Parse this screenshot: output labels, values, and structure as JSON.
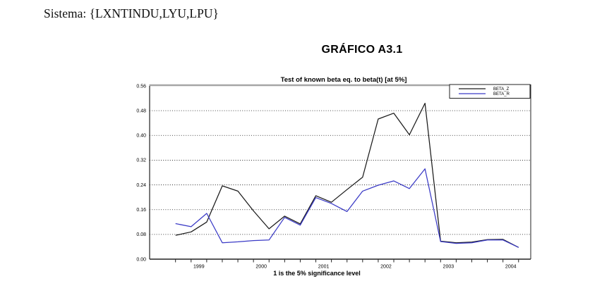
{
  "page": {
    "system_line": "Sistema: {LXNTINDU,LYU,LPU}",
    "figure_title": "GRÁFICO A3.1"
  },
  "chart_data": {
    "type": "line",
    "title": "Test of known beta eq. to beta(t) [at 5%]",
    "xlabel": "1 is the 5% significance level",
    "ylabel": "",
    "x_quarters": [
      "1998Q3",
      "1998Q4",
      "1999Q1",
      "1999Q2",
      "1999Q3",
      "1999Q4",
      "2000Q1",
      "2000Q2",
      "2000Q3",
      "2000Q4",
      "2001Q1",
      "2001Q2",
      "2001Q3",
      "2001Q4",
      "2002Q1",
      "2002Q2",
      "2002Q3",
      "2002Q4",
      "2003Q1",
      "2003Q2",
      "2003Q3",
      "2003Q4",
      "2004Q1"
    ],
    "x_numeric": [
      1998.625,
      1998.875,
      1999.125,
      1999.375,
      1999.625,
      1999.875,
      2000.125,
      2000.375,
      2000.625,
      2000.875,
      2001.125,
      2001.375,
      2001.625,
      2001.875,
      2002.125,
      2002.375,
      2002.625,
      2002.875,
      2003.125,
      2003.375,
      2003.625,
      2003.875,
      2004.125
    ],
    "series": [
      {
        "name": "BETA_Z",
        "color": "#1a1a1a",
        "values": [
          0.077,
          0.088,
          0.12,
          0.237,
          0.22,
          0.156,
          0.098,
          0.139,
          0.114,
          0.205,
          0.184,
          0.225,
          0.265,
          0.453,
          0.472,
          0.402,
          0.504,
          0.058,
          0.053,
          0.055,
          0.063,
          0.064,
          0.038
        ]
      },
      {
        "name": "BETA_R",
        "color": "#3a3ac6",
        "values": [
          0.115,
          0.105,
          0.148,
          0.053,
          0.056,
          0.06,
          0.062,
          0.135,
          0.11,
          0.199,
          0.18,
          0.154,
          0.22,
          0.239,
          0.253,
          0.228,
          0.292,
          0.057,
          0.051,
          0.053,
          0.062,
          0.062,
          0.038
        ]
      }
    ],
    "ylim": [
      0,
      0.56
    ],
    "yticks": [
      0.0,
      0.08,
      0.16,
      0.24,
      0.32,
      0.4,
      0.48,
      0.56
    ],
    "year_labels": [
      1999,
      2000,
      2001,
      2002,
      2003,
      2004
    ],
    "legend_position": "top-right",
    "grid": "horizontal-dotted",
    "colors": {
      "frame_top": "#a6a6a6",
      "axis": "#222222",
      "grid": "#111111"
    }
  }
}
